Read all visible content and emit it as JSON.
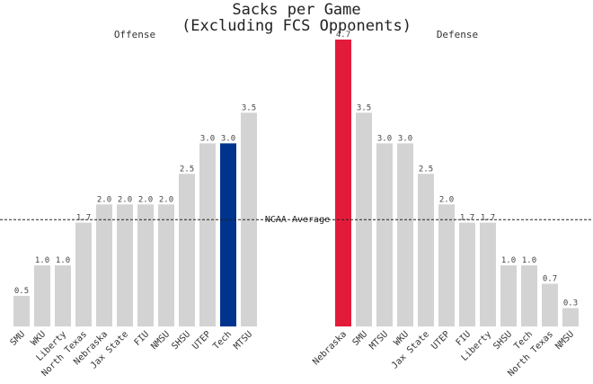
{
  "chart_data": {
    "type": "bar",
    "title": "Sacks per Game\n(Excluding FCS Opponents)",
    "ylim": [
      0,
      4.7
    ],
    "reference_line": {
      "label": "NCAA Average",
      "value": 1.75
    },
    "colors": {
      "default_bar": "#d3d3d3",
      "offense_highlight": "#00338d",
      "defense_highlight": "#e31b3a"
    },
    "panels": [
      {
        "title": "Offense",
        "categories": [
          "SMU",
          "WKU",
          "Liberty",
          "North Texas",
          "Nebraska",
          "Jax State",
          "FIU",
          "NMSU",
          "SHSU",
          "UTEP",
          "Tech",
          "MTSU"
        ],
        "values": [
          0.5,
          1.0,
          1.0,
          1.7,
          2.0,
          2.0,
          2.0,
          2.0,
          2.5,
          3.0,
          3.0,
          3.5
        ],
        "value_labels": [
          "0.5",
          "1.0",
          "1.0",
          "1.7",
          "2.0",
          "2.0",
          "2.0",
          "2.0",
          "2.5",
          "3.0",
          "3.0",
          "3.5"
        ],
        "highlight": "Tech"
      },
      {
        "title": "Defense",
        "categories": [
          "Nebraska",
          "SMU",
          "MTSU",
          "WKU",
          "Jax State",
          "UTEP",
          "FIU",
          "Liberty",
          "SHSU",
          "Tech",
          "North Texas",
          "NMSU"
        ],
        "values": [
          4.7,
          3.5,
          3.0,
          3.0,
          2.5,
          2.0,
          1.7,
          1.7,
          1.0,
          1.0,
          0.7,
          0.3
        ],
        "value_labels": [
          "4.7",
          "3.5",
          "3.0",
          "3.0",
          "2.5",
          "2.0",
          "1.7",
          "1.7",
          "1.0",
          "1.0",
          "0.7",
          "0.3"
        ],
        "highlight": "Nebraska"
      }
    ]
  }
}
